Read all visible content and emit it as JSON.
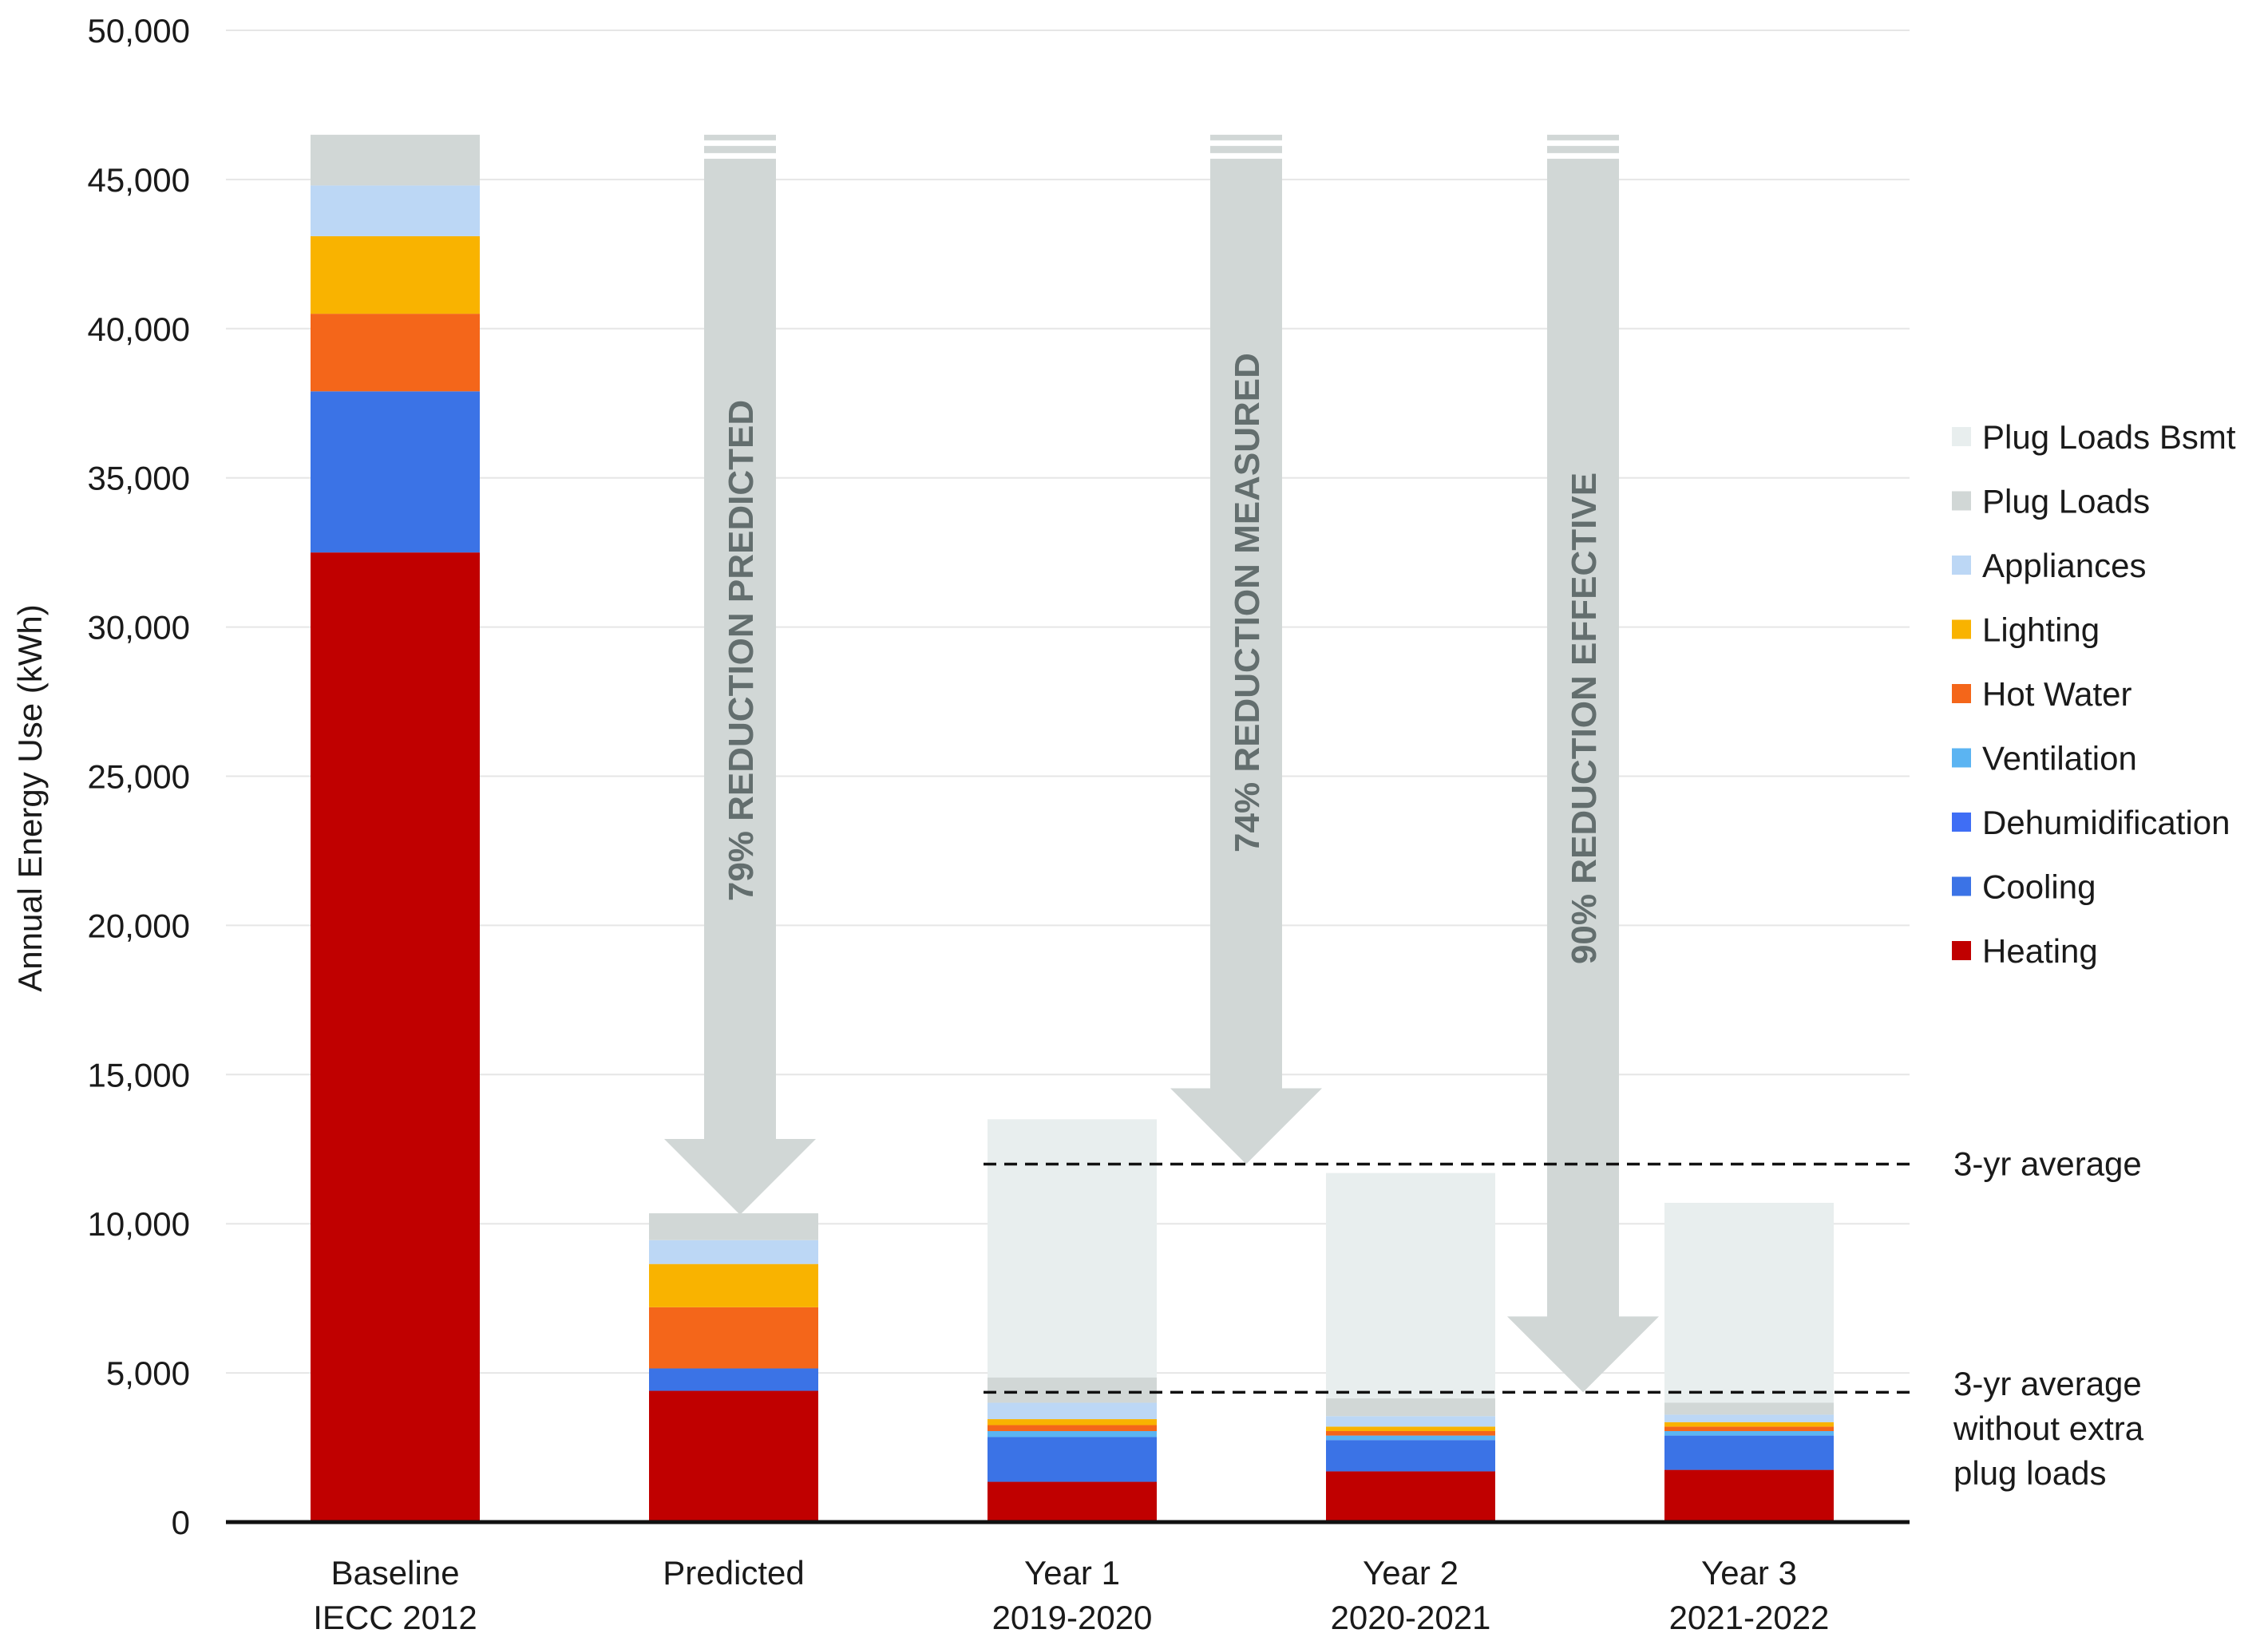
{
  "chart_data": {
    "type": "bar",
    "stacked": true,
    "ylabel": "Annual Energy Use (kWh)",
    "xlabel": "",
    "ylim": [
      0,
      50000
    ],
    "yticks": [
      0,
      5000,
      10000,
      15000,
      20000,
      25000,
      30000,
      35000,
      40000,
      45000,
      50000
    ],
    "ytick_labels": [
      "0",
      "5,000",
      "10,000",
      "15,000",
      "20,000",
      "25,000",
      "30,000",
      "35,000",
      "40,000",
      "45,000",
      "50,000"
    ],
    "grid": true,
    "legend_position": "right",
    "categories": [
      [
        "Baseline",
        "IECC 2012"
      ],
      [
        "Predicted"
      ],
      [
        "Year 1",
        "2019-2020"
      ],
      [
        "Year 2",
        "2020-2021"
      ],
      [
        "Year 3",
        "2021-2022"
      ]
    ],
    "series": [
      {
        "name": "Heating",
        "color": "#c00000",
        "values": [
          32500,
          4400,
          1350,
          1700,
          1750
        ]
      },
      {
        "name": "Cooling",
        "color": "#3b73e6",
        "values": [
          5400,
          750,
          1500,
          1050,
          1150
        ]
      },
      {
        "name": "Dehumidification",
        "color": "#3f6ef5",
        "values": [
          0,
          0,
          0,
          0,
          0
        ]
      },
      {
        "name": "Ventilation",
        "color": "#5bb4f2",
        "values": [
          0,
          0,
          200,
          150,
          150
        ]
      },
      {
        "name": "Hot Water",
        "color": "#f4661a",
        "values": [
          2600,
          2050,
          200,
          150,
          150
        ]
      },
      {
        "name": "Lighting",
        "color": "#f9b300",
        "values": [
          2600,
          1450,
          200,
          150,
          150
        ]
      },
      {
        "name": "Appliances",
        "color": "#bcd7f5",
        "values": [
          1700,
          800,
          550,
          350,
          250
        ]
      },
      {
        "name": "Plug Loads",
        "color": "#d1d7d6",
        "values": [
          1700,
          900,
          850,
          600,
          400
        ]
      },
      {
        "name": "Plug Loads Bsmt",
        "color": "#e8eeee",
        "values": [
          0,
          0,
          8650,
          7550,
          6700
        ]
      }
    ],
    "legend": [
      "Plug Loads Bsmt",
      "Plug Loads",
      "Appliances",
      "Lighting",
      "Hot Water",
      "Ventilation",
      "Dehumidification",
      "Cooling",
      "Heating"
    ],
    "reference_lines": [
      {
        "label": "3-yr average",
        "value": 12000
      },
      {
        "label_lines": [
          "3-yr average",
          "without extra",
          "plug loads"
        ],
        "value": 4350
      }
    ],
    "arrows": [
      {
        "label": "79% REDUCTION PREDICTED",
        "from": 46500,
        "to": 10300
      },
      {
        "label": "74% REDUCTION MEASURED",
        "from": 46500,
        "to": 12000
      },
      {
        "label": "90% REDUCTION EFFECTIVE",
        "from": 46500,
        "to": 4350
      }
    ],
    "arrow_color": "#d1d7d6",
    "arrow_text_color": "#636e6e"
  }
}
